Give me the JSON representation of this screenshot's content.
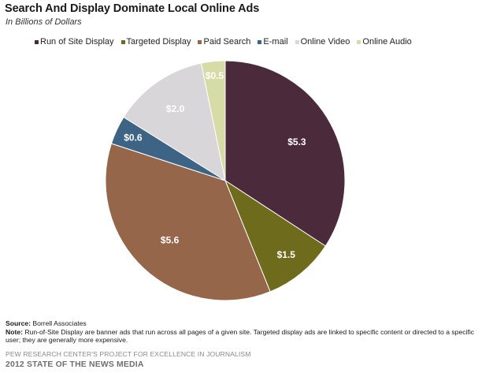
{
  "chart_data": {
    "type": "pie",
    "title": "Search And Display Dominate Local Online Ads",
    "subtitle": "In Billions of Dollars",
    "legend_position": "top",
    "slices": [
      {
        "label": "Run of Site Display",
        "value": 5.3,
        "value_label": "$5.3",
        "color": "#4b2a3c"
      },
      {
        "label": "Targeted Display",
        "value": 1.5,
        "value_label": "$1.5",
        "color": "#6f6b1c"
      },
      {
        "label": "Paid Search",
        "value": 5.6,
        "value_label": "$5.6",
        "color": "#96664a"
      },
      {
        "label": "E-mail",
        "value": 0.6,
        "value_label": "$0.6",
        "color": "#3e6485"
      },
      {
        "label": "Online Video",
        "value": 2.0,
        "value_label": "$2.0",
        "color": "#d8d6d8"
      },
      {
        "label": "Online Audio",
        "value": 0.5,
        "value_label": "$0.5",
        "color": "#d6dca6"
      }
    ]
  },
  "footer": {
    "source_label": "Source:",
    "source_text": " Borrell Associates",
    "note_label": "Note:",
    "note_text": " Run-of-Site Display are banner ads that run across all pages of a given site. Targeted display ads are linked to specific content or directed to a specific user; they are generally more expensive.",
    "org": "PEW RESEARCH CENTER'S PROJECT FOR EXCELLENCE IN JOURNALISM",
    "report": "2012 STATE OF THE NEWS MEDIA"
  }
}
